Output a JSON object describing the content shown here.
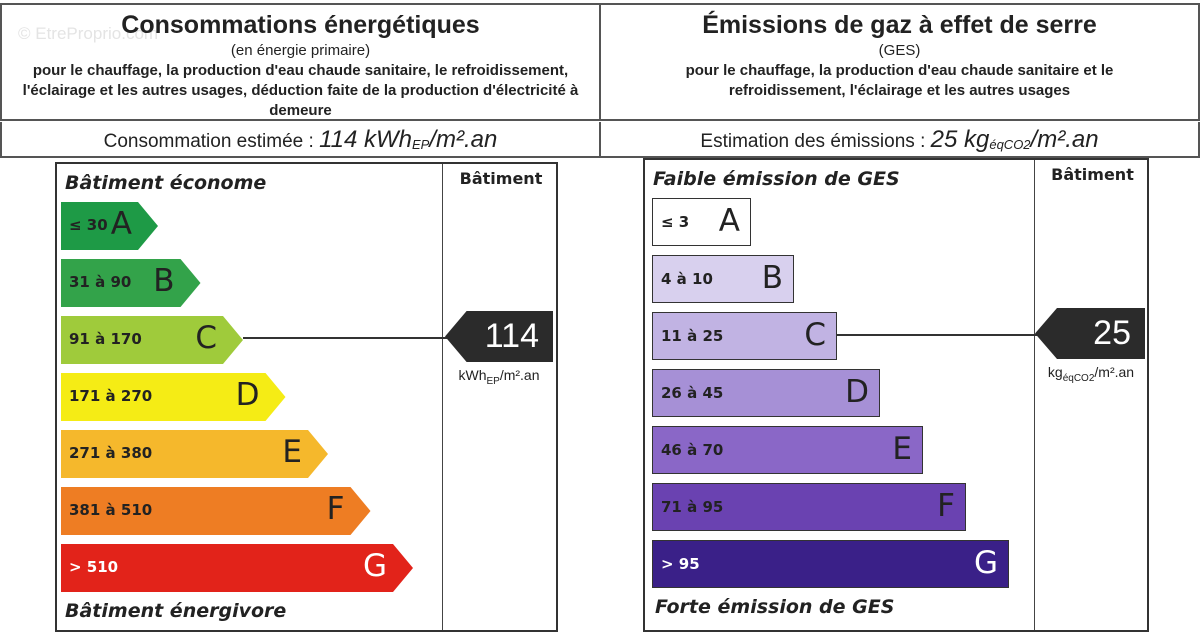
{
  "watermark": "© EtreProprio.com",
  "energy": {
    "title": "Consommations énergétiques",
    "subtitle": "(en énergie primaire)",
    "description": "pour le chauffage, la production d'eau chaude sanitaire, le refroidissement, l'éclairage et les autres usages, déduction faite de la production d'électricité à demeure",
    "estimate_label": "Consommation estimée :",
    "estimate_value": "114 kWh",
    "estimate_sub": "EP",
    "estimate_unit": "/m².an",
    "column_title": "Bâtiment",
    "top_caption": "Bâtiment économe",
    "bottom_caption": "Bâtiment énergivore",
    "value": "114",
    "value_unit_main": "kWh",
    "value_unit_sub": "EP",
    "value_unit_tail": "/m².an",
    "current_class": "C",
    "classes": [
      {
        "letter": "A",
        "range": "≤ 30",
        "color": "#1e9a46",
        "text": "#222"
      },
      {
        "letter": "B",
        "range": "31 à 90",
        "color": "#33a34a",
        "text": "#222"
      },
      {
        "letter": "C",
        "range": "91 à 170",
        "color": "#9fcb3b",
        "text": "#222"
      },
      {
        "letter": "D",
        "range": "171 à 270",
        "color": "#f5ec15",
        "text": "#222"
      },
      {
        "letter": "E",
        "range": "271 à 380",
        "color": "#f5b82c",
        "text": "#222"
      },
      {
        "letter": "F",
        "range": "381 à 510",
        "color": "#ee7d23",
        "text": "#222"
      },
      {
        "letter": "G",
        "range": "> 510",
        "color": "#e2231a",
        "text": "#fff"
      }
    ]
  },
  "ges": {
    "title": "Émissions de gaz à effet de serre",
    "subtitle": "(GES)",
    "description": "pour le chauffage, la production d'eau chaude sanitaire et le refroidissement, l'éclairage et les autres usages",
    "estimate_label": "Estimation des émissions :",
    "estimate_value": "25 kg",
    "estimate_sub": "éqCO2",
    "estimate_unit": "/m².an",
    "column_title": "Bâtiment",
    "top_caption": "Faible émission de GES",
    "bottom_caption": "Forte émission de GES",
    "value": "25",
    "value_unit_main": "kg",
    "value_unit_sub": "éqCO2",
    "value_unit_tail": "/m².an",
    "current_class": "C",
    "classes": [
      {
        "letter": "A",
        "range": "≤ 3",
        "color": "#ffffff",
        "text": "#222"
      },
      {
        "letter": "B",
        "range": "4 à 10",
        "color": "#d8d0ee",
        "text": "#222"
      },
      {
        "letter": "C",
        "range": "11 à 25",
        "color": "#c1b3e3",
        "text": "#222"
      },
      {
        "letter": "D",
        "range": "26 à 45",
        "color": "#a690d6",
        "text": "#222"
      },
      {
        "letter": "E",
        "range": "46 à 70",
        "color": "#8a67c7",
        "text": "#222"
      },
      {
        "letter": "F",
        "range": "71 à 95",
        "color": "#6a42b1",
        "text": "#222"
      },
      {
        "letter": "G",
        "range": "> 95",
        "color": "#3a2088",
        "text": "#fff"
      }
    ]
  }
}
